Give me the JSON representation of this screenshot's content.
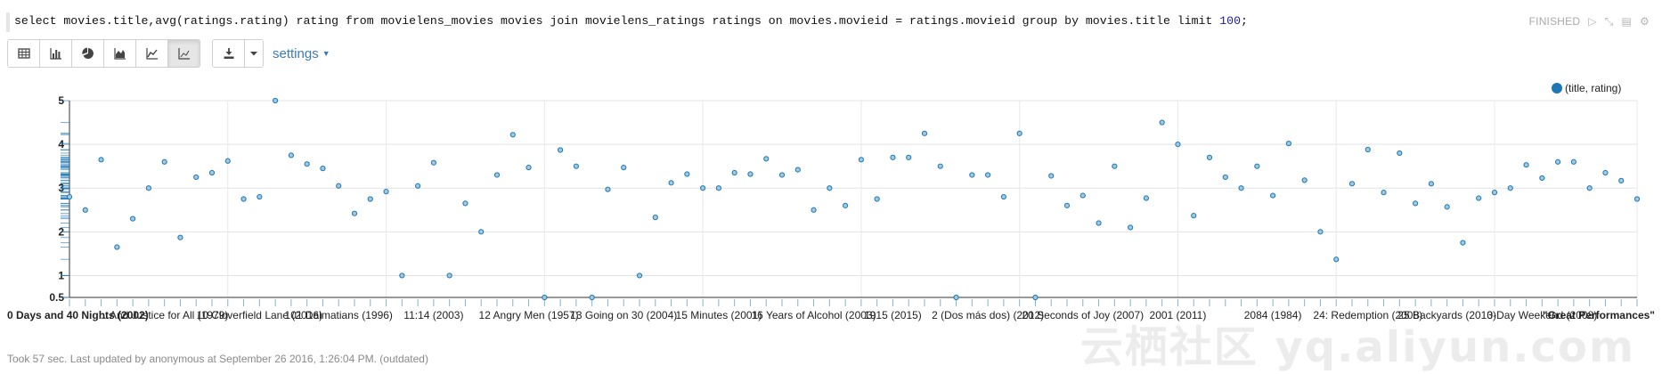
{
  "paragraph": {
    "query_text": "select movies.title,avg(ratings.rating) rating from movielens_movies movies join movielens_ratings ratings on movies.movieid = ratings.movieid group by movies.title limit ",
    "query_limit": "100",
    "query_end": ";",
    "status": "FINISHED",
    "footer": "Took 57 sec. Last updated by anonymous at September 26 2016, 1:26:04 PM. (outdated)"
  },
  "toolbar": {
    "settings_label": "settings"
  },
  "watermark": "云栖社区 yq.aliyun.com",
  "chart_data": {
    "type": "scatter",
    "title": "",
    "xlabel": "",
    "ylabel": "",
    "ylim": [
      0.5,
      5
    ],
    "yticks": [
      0.5,
      1,
      2,
      3,
      4,
      5
    ],
    "grid": true,
    "legend_position": "top-right",
    "series": [
      {
        "name": "(title, rating)",
        "color": "#1f77b4",
        "values": [
          2.8,
          2.5,
          3.65,
          1.65,
          2.3,
          3.0,
          3.6,
          1.87,
          3.25,
          3.35,
          3.62,
          2.75,
          2.8,
          5.0,
          3.75,
          3.55,
          3.45,
          3.05,
          2.42,
          2.75,
          2.92,
          1.0,
          3.05,
          3.58,
          1.0,
          2.65,
          2.0,
          3.3,
          4.22,
          3.47,
          0.5,
          3.87,
          3.5,
          0.5,
          2.97,
          3.47,
          1.0,
          2.33,
          3.12,
          3.32,
          3.0,
          3.0,
          3.35,
          3.32,
          3.67,
          3.3,
          3.42,
          2.5,
          3.0,
          2.6,
          3.65,
          2.75,
          3.7,
          3.7,
          4.25,
          3.5,
          0.5,
          3.3,
          3.3,
          2.8,
          4.25,
          0.5,
          3.28,
          2.6,
          2.83,
          2.2,
          3.5,
          2.1,
          2.77,
          4.5,
          4.0,
          2.37,
          3.7,
          3.25,
          3.0,
          3.5,
          2.83,
          4.02,
          3.18,
          2.0,
          1.37,
          3.1,
          3.88,
          2.9,
          3.8,
          2.65,
          3.1,
          2.57,
          1.75,
          2.77,
          2.9,
          3.0,
          3.53,
          3.23,
          3.6,
          3.6,
          3.0,
          3.35,
          3.17,
          2.75
        ]
      }
    ],
    "x_tick_labels": [
      "0 Days and 40 Nights (2002)",
      "...And Justice for All (1979)",
      "10 Cloverfield Lane (2016)",
      "101 Dalmatians (1996)",
      "11:14 (2003)",
      "12 Angry Men (1957)",
      "13 Going on 30 (2004)",
      "15 Minutes (2001)",
      "16 Years of Alcohol (2003)",
      "1915 (2015)",
      "2 (Dos más dos) (2012)",
      "20 Seconds of Joy (2007)",
      "2001 (2011)",
      "2084 (1984)",
      "24: Redemption (2008)",
      "25 Backyards (2010)",
      "3-Day Weekend (2008)",
      "\"Great Performances\""
    ],
    "y_axis_rug": true
  }
}
